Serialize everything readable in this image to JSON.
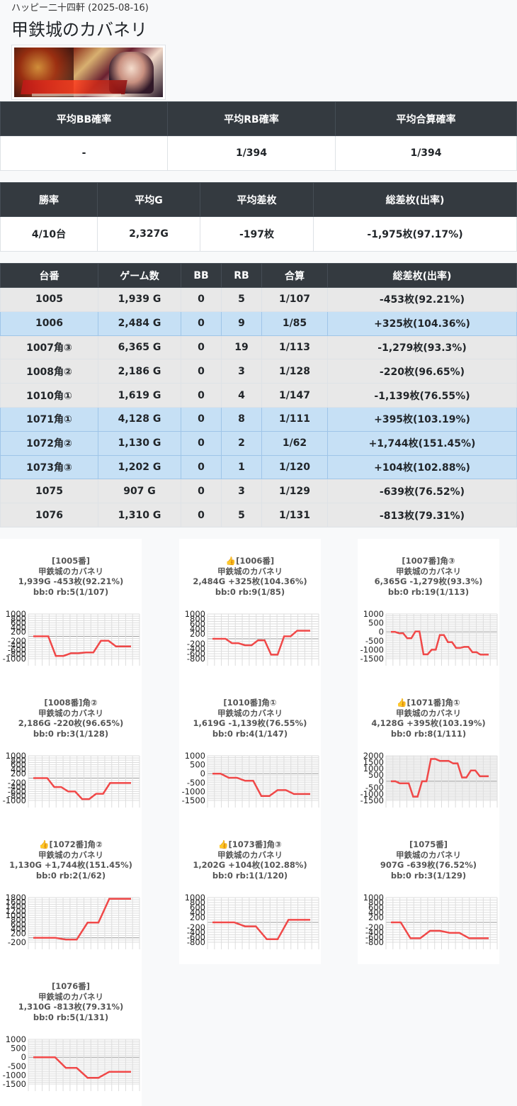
{
  "header": {
    "store_line": "ハッピー二十四軒 (2025-08-16)",
    "title": "甲鉄城のカバネリ"
  },
  "summary1": {
    "headers": [
      "平均BB確率",
      "平均RB確率",
      "平均合算確率"
    ],
    "values": [
      "-",
      "1/394",
      "1/394"
    ]
  },
  "summary2": {
    "headers": [
      "勝率",
      "平均G",
      "平均差枚",
      "総差枚(出率)"
    ],
    "values": [
      "4/10台",
      "2,327G",
      "-197枚",
      "-1,975枚(97.17%)"
    ]
  },
  "machines_table": {
    "headers": [
      "台番",
      "ゲーム数",
      "BB",
      "RB",
      "合算",
      "総差枚(出率)"
    ],
    "rows": [
      {
        "status": "lose",
        "cells": [
          "1005",
          "1,939 G",
          "0",
          "5",
          "1/107",
          "-453枚(92.21%)"
        ]
      },
      {
        "status": "win",
        "cells": [
          "1006",
          "2,484 G",
          "0",
          "9",
          "1/85",
          "+325枚(104.36%)"
        ]
      },
      {
        "status": "lose",
        "cells": [
          "1007角③",
          "6,365 G",
          "0",
          "19",
          "1/113",
          "-1,279枚(93.3%)"
        ]
      },
      {
        "status": "lose",
        "cells": [
          "1008角②",
          "2,186 G",
          "0",
          "3",
          "1/128",
          "-220枚(96.65%)"
        ]
      },
      {
        "status": "lose",
        "cells": [
          "1010角①",
          "1,619 G",
          "0",
          "4",
          "1/147",
          "-1,139枚(76.55%)"
        ]
      },
      {
        "status": "win",
        "cells": [
          "1071角①",
          "4,128 G",
          "0",
          "8",
          "1/111",
          "+395枚(103.19%)"
        ]
      },
      {
        "status": "win",
        "cells": [
          "1072角②",
          "1,130 G",
          "0",
          "2",
          "1/62",
          "+1,744枚(151.45%)"
        ]
      },
      {
        "status": "win",
        "cells": [
          "1073角③",
          "1,202 G",
          "0",
          "1",
          "1/120",
          "+104枚(102.88%)"
        ]
      },
      {
        "status": "lose",
        "cells": [
          "1075",
          "907 G",
          "0",
          "3",
          "1/129",
          "-639枚(76.52%)"
        ]
      },
      {
        "status": "lose",
        "cells": [
          "1076",
          "1,310 G",
          "0",
          "5",
          "1/131",
          "-813枚(79.31%)"
        ]
      }
    ]
  },
  "colors": {
    "line": "#f04848",
    "header_bg": "#343a40",
    "win_row": "#c6e0f5",
    "lose_row": "#e8e8e8"
  },
  "chart_data": [
    {
      "type": "line",
      "caption": [
        "[1005番]",
        "甲鉄城のカバネリ",
        "1,939G -453枚(92.21%)",
        "bb:0 rb:5(1/107)"
      ],
      "yticks": [
        1000,
        800,
        600,
        400,
        200,
        -200,
        -400,
        -600,
        -800,
        -1000
      ],
      "ylim": [
        -1000,
        1000
      ],
      "grid": true,
      "step": 100,
      "values": [
        0,
        0,
        0,
        -880,
        -880,
        -760,
        -760,
        -720,
        -720,
        -200,
        -200,
        -453,
        -453,
        -453
      ]
    },
    {
      "type": "line",
      "caption": [
        "👍[1006番]",
        "甲鉄城のカバネリ",
        "2,484G +325枚(104.36%)",
        "bb:0 rb:9(1/85)"
      ],
      "yticks": [
        1000,
        800,
        600,
        400,
        200,
        -200,
        -400,
        -600,
        -800
      ],
      "ylim": [
        -800,
        1000
      ],
      "grid": true,
      "step": 100,
      "values": [
        0,
        0,
        0,
        -180,
        -180,
        -260,
        -260,
        -60,
        -60,
        -640,
        -640,
        100,
        100,
        325,
        325,
        325
      ]
    },
    {
      "type": "line",
      "caption": [
        "[1007番]角③",
        "甲鉄城のカバネリ",
        "6,365G -1,279枚(93.3%)",
        "bb:0 rb:19(1/113)"
      ],
      "yticks": [
        1000,
        500,
        0,
        -500,
        -1000,
        -1500
      ],
      "ylim": [
        -1500,
        1000
      ],
      "grid": true,
      "step": 100,
      "values": [
        0,
        0,
        -80,
        -80,
        -360,
        -360,
        20,
        20,
        -1260,
        -1260,
        -1000,
        -1000,
        -180,
        -180,
        -580,
        -580,
        -900,
        -900,
        -840,
        -840,
        -1140,
        -1140,
        -1279,
        -1279,
        -1279
      ]
    },
    {
      "type": "line",
      "caption": [
        "[1008番]角②",
        "甲鉄城のカバネリ",
        "2,186G -220枚(96.65%)",
        "bb:0 rb:3(1/128)"
      ],
      "yticks": [
        1000,
        800,
        600,
        400,
        200,
        -200,
        -400,
        -600,
        -800,
        -1000
      ],
      "ylim": [
        -1000,
        1000
      ],
      "grid": true,
      "step": 100,
      "values": [
        0,
        0,
        0,
        -400,
        -400,
        -600,
        -600,
        -940,
        -940,
        -700,
        -700,
        -220,
        -220,
        -220,
        -220
      ]
    },
    {
      "type": "line",
      "caption": [
        "[1010番]角①",
        "甲鉄城のカバネリ",
        "1,619G -1,139枚(76.55%)",
        "bb:0 rb:4(1/147)"
      ],
      "yticks": [
        1000,
        500,
        0,
        -500,
        -1000,
        -1500
      ],
      "ylim": [
        -1500,
        1000
      ],
      "grid": true,
      "step": 100,
      "values": [
        0,
        0,
        -230,
        -230,
        -400,
        -400,
        -1250,
        -1250,
        -920,
        -920,
        -1139,
        -1139,
        -1139
      ]
    },
    {
      "type": "line",
      "caption": [
        "👍[1071番]角①",
        "甲鉄城のカバネリ",
        "4,128G +395枚(103.19%)",
        "bb:0 rb:8(1/111)"
      ],
      "yticks": [
        2000,
        1500,
        1000,
        500,
        0,
        -500,
        -1000,
        -1500
      ],
      "ylim": [
        -1500,
        2000
      ],
      "grid": true,
      "step": 100,
      "values": [
        0,
        0,
        -160,
        -160,
        -160,
        -1200,
        -1200,
        0,
        0,
        1750,
        1750,
        1600,
        1600,
        1600,
        1400,
        1400,
        300,
        300,
        850,
        850,
        395,
        395,
        395
      ]
    },
    {
      "type": "line",
      "caption": [
        "👍[1072番]角②",
        "甲鉄城のカバネリ",
        "1,130G +1,744枚(151.45%)",
        "bb:0 rb:2(1/62)"
      ],
      "yticks": [
        1800,
        1600,
        1400,
        1200,
        1000,
        800,
        600,
        400,
        200,
        -200
      ],
      "ylim": [
        -200,
        1800
      ],
      "grid": true,
      "step": 100,
      "values": [
        0,
        0,
        0,
        -80,
        -80,
        680,
        680,
        1744,
        1744,
        1744
      ]
    },
    {
      "type": "line",
      "caption": [
        "👍[1073番]角③",
        "甲鉄城のカバネリ",
        "1,202G +104枚(102.88%)",
        "bb:0 rb:1(1/120)"
      ],
      "yticks": [
        1000,
        800,
        600,
        400,
        200,
        -200,
        -400,
        -600,
        -800
      ],
      "ylim": [
        -800,
        1000
      ],
      "grid": true,
      "step": 100,
      "values": [
        0,
        0,
        0,
        -160,
        -160,
        -680,
        -680,
        104,
        104,
        104
      ]
    },
    {
      "type": "line",
      "caption": [
        "[1075番]",
        "甲鉄城のカバネリ",
        "907G -639枚(76.52%)",
        "bb:0 rb:3(1/129)"
      ],
      "yticks": [
        1000,
        800,
        600,
        400,
        200,
        -200,
        -400,
        -600,
        -800
      ],
      "ylim": [
        -800,
        1000
      ],
      "grid": true,
      "step": 100,
      "values": [
        0,
        0,
        -640,
        -640,
        -340,
        -340,
        -420,
        -420,
        -639,
        -639,
        -639
      ]
    },
    {
      "type": "line",
      "caption": [
        "[1076番]",
        "甲鉄城のカバネリ",
        "1,310G -813枚(79.31%)",
        "bb:0 rb:5(1/131)"
      ],
      "yticks": [
        1000,
        500,
        0,
        -500,
        -1000,
        -1500
      ],
      "ylim": [
        -1500,
        1000
      ],
      "grid": true,
      "step": 100,
      "values": [
        0,
        0,
        0,
        -600,
        -600,
        -1150,
        -1150,
        -813,
        -813,
        -813
      ]
    }
  ]
}
